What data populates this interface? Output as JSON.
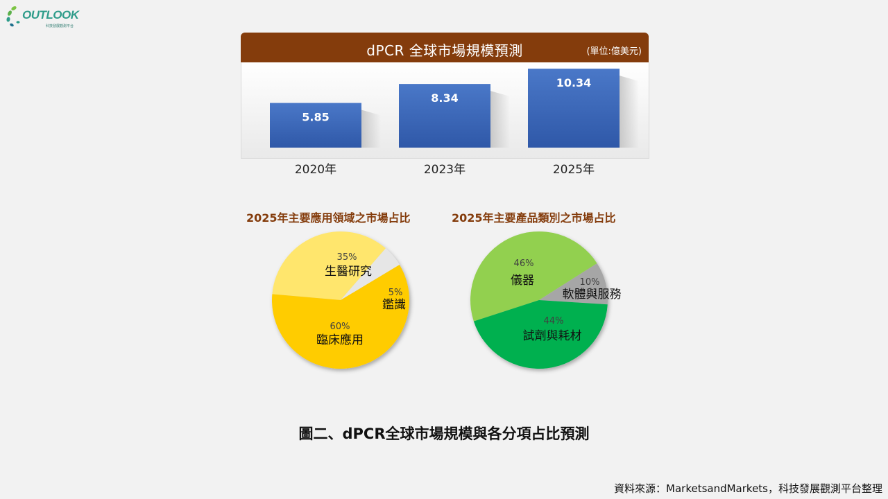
{
  "logo": {
    "text": "OUTLOOK",
    "subtext": "科技發展觀測平台"
  },
  "bar_chart": {
    "title": "dPCR 全球市場規模預測",
    "unit": "(單位:億美元)"
  },
  "pie_titles": {
    "left": "2025年主要應用領域之市場占比",
    "right": "2025年主要產品類別之市場占比"
  },
  "caption": "圖二、dPCR全球市場規模與各分項占比預測",
  "source": "資料來源：MarketsandMarkets，科技發展觀測平台整理",
  "chart_data": [
    {
      "type": "bar",
      "title": "dPCR 全球市場規模預測",
      "unit": "(單位:億美元)",
      "categories": [
        "2020年",
        "2023年",
        "2025年"
      ],
      "values": [
        5.85,
        8.34,
        10.34
      ],
      "value_labels": [
        "5.85",
        "8.34",
        "10.34"
      ],
      "ylim": [
        0,
        11.8
      ],
      "color": "#4472c4"
    },
    {
      "type": "pie",
      "title": "2025年主要應用領域之市場占比",
      "slices": [
        {
          "label": "生醫研究",
          "value": 35,
          "pct_label": "35%",
          "color": "#ffe66d"
        },
        {
          "label": "鑑識",
          "value": 5,
          "pct_label": "5%",
          "color": "#e6e6e6"
        },
        {
          "label": "臨床應用",
          "value": 60,
          "pct_label": "60%",
          "color": "#ffcc00"
        }
      ]
    },
    {
      "type": "pie",
      "title": "2025年主要產品類別之市場占比",
      "slices": [
        {
          "label": "儀器",
          "value": 46,
          "pct_label": "46%",
          "color": "#92d050"
        },
        {
          "label": "軟體與服務",
          "value": 10,
          "pct_label": "10%",
          "color": "#a6a6a6"
        },
        {
          "label": "試劑與耗材",
          "value": 44,
          "pct_label": "44%",
          "color": "#00b050"
        }
      ]
    }
  ]
}
